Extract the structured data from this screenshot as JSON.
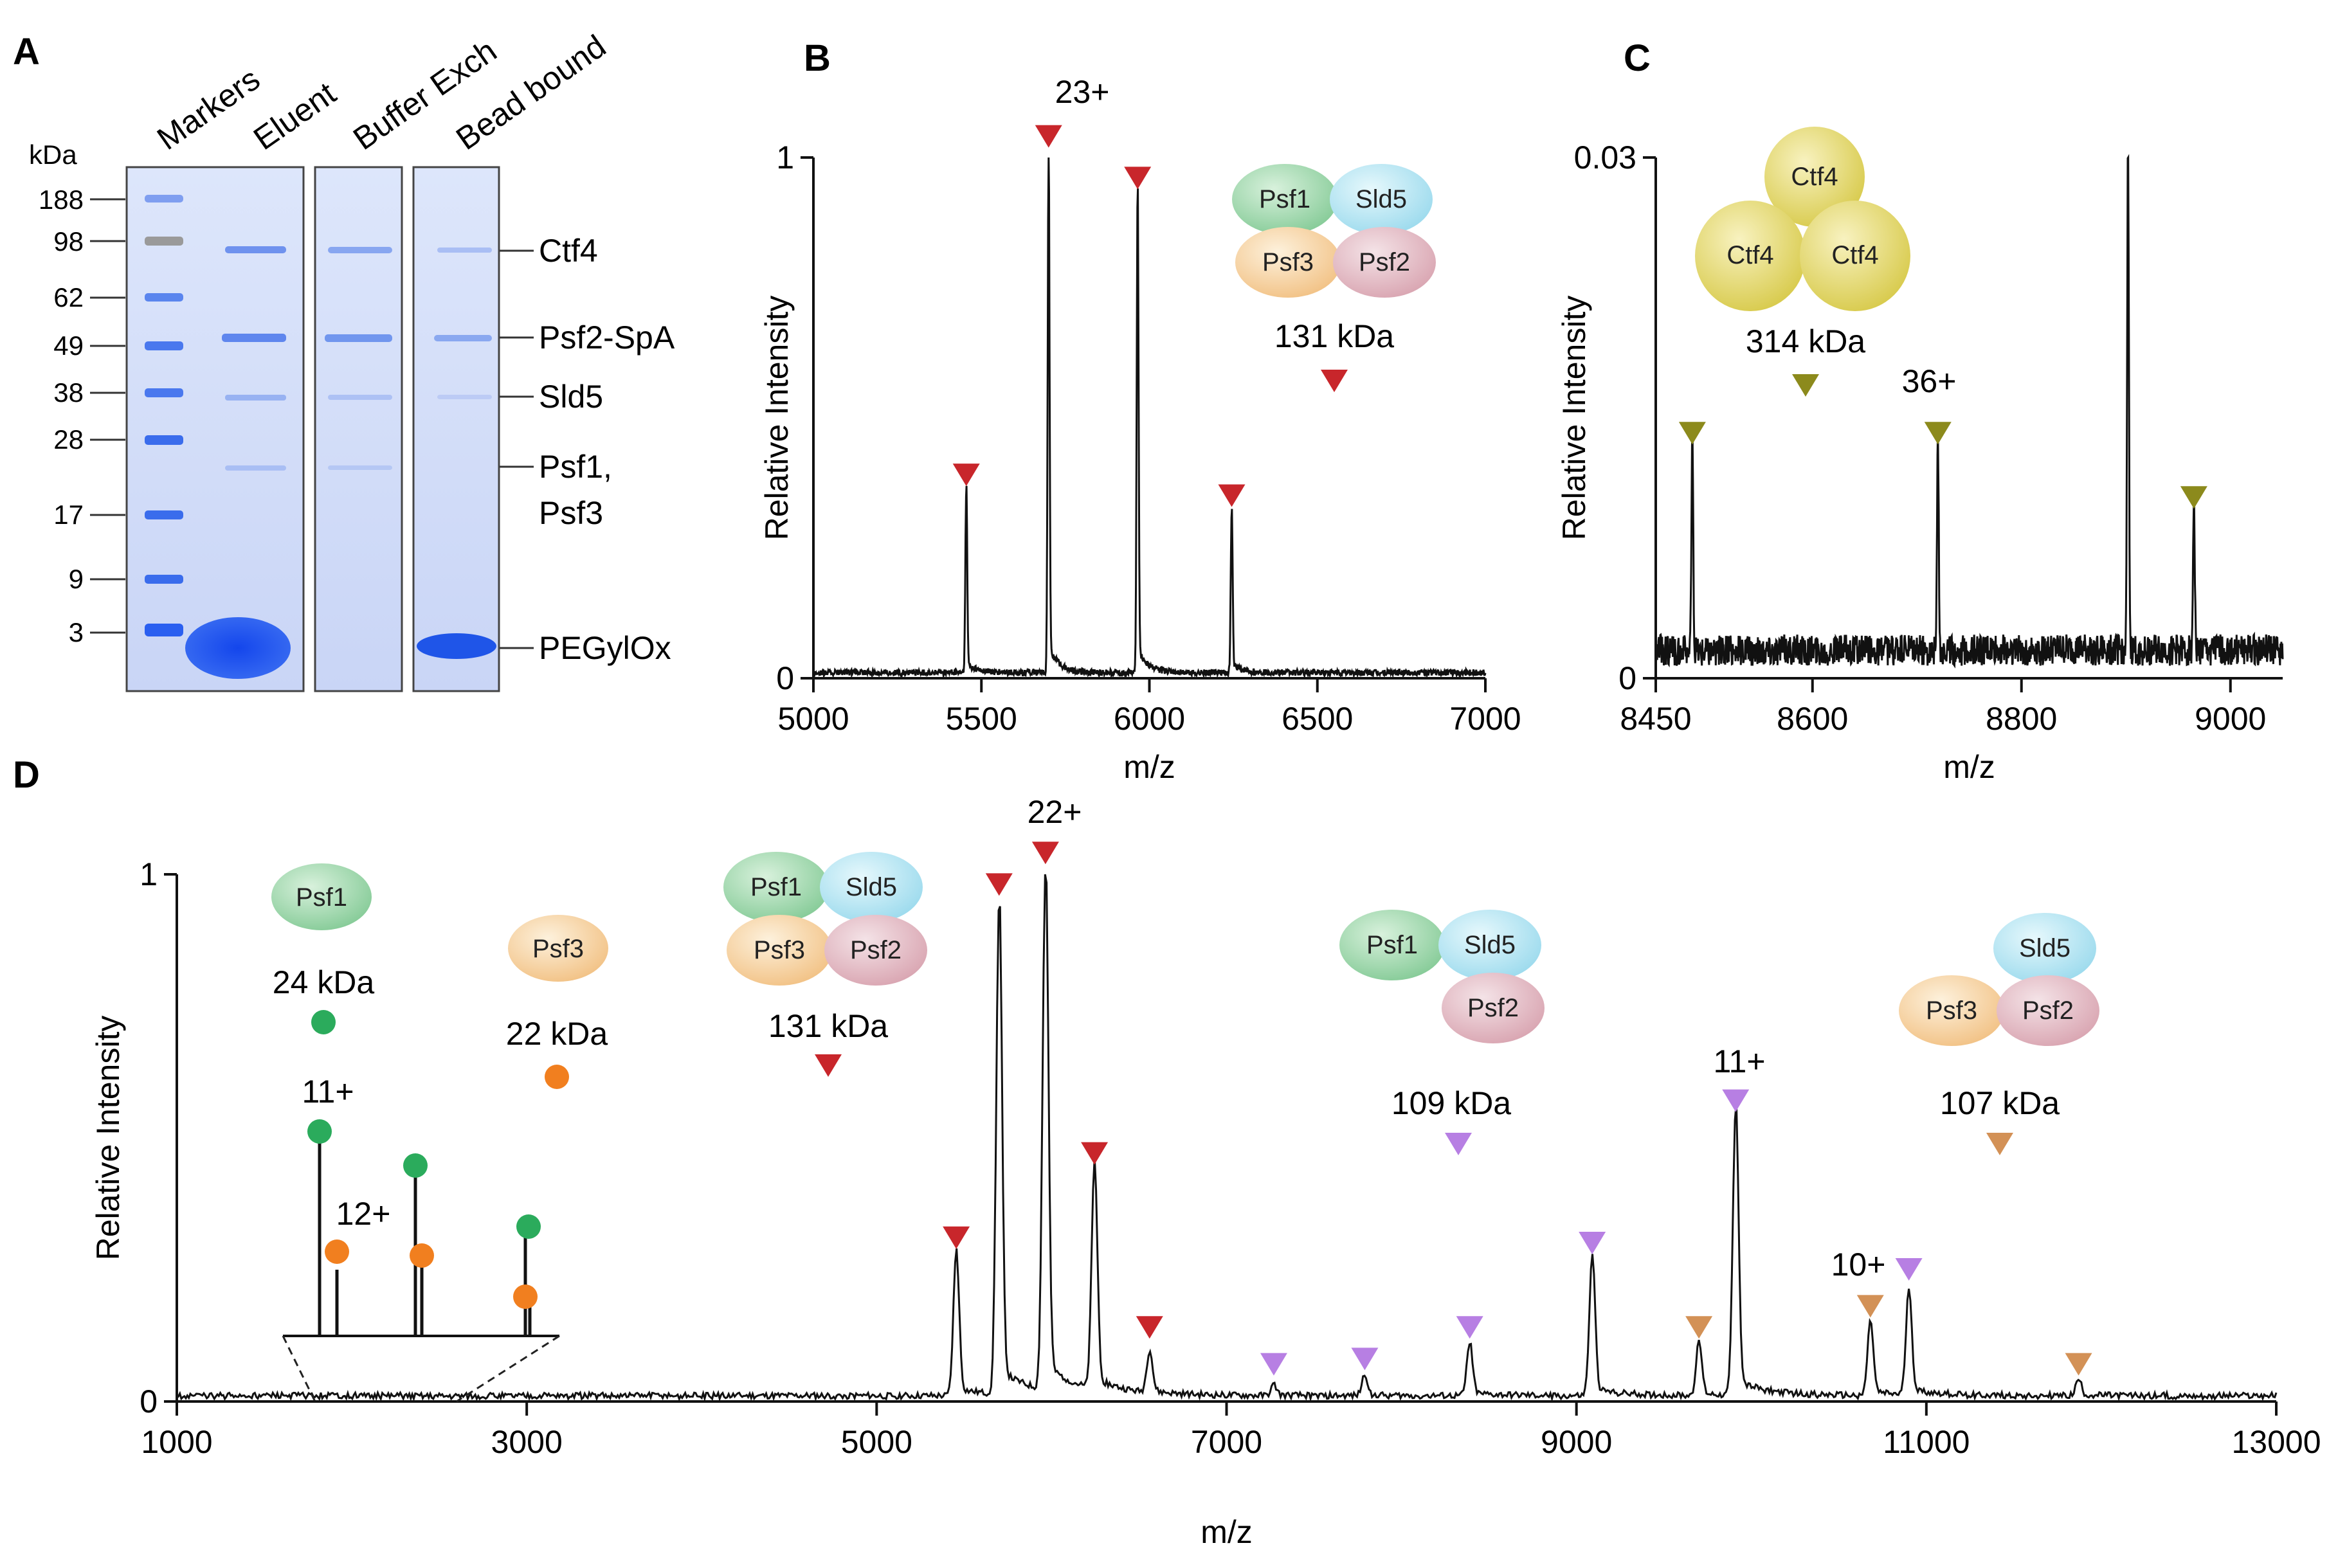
{
  "panels": {
    "A": {
      "letter": "A",
      "kda_label": "kDa",
      "lane_labels": [
        "Markers",
        "Eluent",
        "Buffer Exch",
        "Bead bound"
      ],
      "marker_values": [
        "188",
        "98",
        "62",
        "49",
        "38",
        "28",
        "17",
        "9",
        "3"
      ],
      "band_labels": [
        "Ctf4",
        "Psf2-SpA",
        "Sld5",
        "Psf1,",
        "Psf3",
        "PEGylOx"
      ]
    },
    "B": {
      "letter": "B",
      "complex_subunits": [
        "Psf1",
        "Sld5",
        "Psf3",
        "Psf2"
      ],
      "mass_label": "131 kDa",
      "charge_label": "23+"
    },
    "C": {
      "letter": "C",
      "complex_subunits": [
        "Ctf4",
        "Ctf4",
        "Ctf4"
      ],
      "mass_label": "314 kDa",
      "charge_label": "36+"
    },
    "D": {
      "letter": "D",
      "psf1": {
        "name": "Psf1",
        "mass_label": "24 kDa"
      },
      "psf3": {
        "name": "Psf3",
        "mass_label": "22 kDa"
      },
      "tetramer": {
        "subunits": [
          "Psf1",
          "Sld5",
          "Psf3",
          "Psf2"
        ],
        "mass_label": "131 kDa"
      },
      "trimer1": {
        "subunits": [
          "Psf1",
          "Sld5",
          "Psf2"
        ],
        "mass_label": "109 kDa"
      },
      "trimer2": {
        "subunits": [
          "Sld5",
          "Psf3",
          "Psf2"
        ],
        "mass_label": "107 kDa"
      },
      "charge_labels": {
        "tetramer": "22+",
        "psf1": "11+",
        "psf3": "12+",
        "trimer1": "11+",
        "trimer2": "10+"
      }
    }
  },
  "colors": {
    "red_marker": "#c8262b",
    "olive_marker": "#8c8a1c",
    "purple_marker": "#b77fe3",
    "orange_marker": "#d39156",
    "green_dot": "#2bab5c",
    "orange_dot": "#f17f1f",
    "gel_blue": "#1f55e8",
    "psf1_green": "#8ed1a0",
    "sld5_cyan": "#a5e1f0",
    "psf3_orange": "#f5c88a",
    "psf2_pink": "#dba8b4",
    "ctf4_yellow": "#e2d659"
  },
  "chart_data": [
    {
      "panel": "B",
      "type": "line",
      "xlabel": "m/z",
      "ylabel": "Relative  Intensity",
      "xlim": [
        5000,
        7000
      ],
      "ylim": [
        0,
        1
      ],
      "xticks": [
        5000,
        5500,
        6000,
        6500,
        7000
      ],
      "yticks": [
        0,
        1
      ],
      "peaks": [
        {
          "x": 5455,
          "y": 0.35
        },
        {
          "x": 5700,
          "y": 1.0
        },
        {
          "x": 5965,
          "y": 0.92
        },
        {
          "x": 6245,
          "y": 0.31
        }
      ],
      "markers": [
        {
          "x": 5455,
          "y": 0.39,
          "series": "131 kDa"
        },
        {
          "x": 5700,
          "y": 1.04,
          "series": "131 kDa"
        },
        {
          "x": 5965,
          "y": 0.96,
          "series": "131 kDa"
        },
        {
          "x": 6245,
          "y": 0.35,
          "series": "131 kDa"
        }
      ]
    },
    {
      "panel": "C",
      "type": "line",
      "xlabel": "m/z",
      "ylabel": "Relative  Intensity",
      "xlim": [
        8450,
        9050
      ],
      "ylim": [
        0,
        0.03
      ],
      "xticks": [
        8450,
        8600,
        8800,
        9000
      ],
      "yticks": [
        0,
        0.03
      ],
      "peaks": [
        {
          "x": 8485,
          "y": 0.0123
        },
        {
          "x": 8720,
          "y": 0.0125
        },
        {
          "x": 8902,
          "y": 0.0295
        },
        {
          "x": 8965,
          "y": 0.0088
        }
      ],
      "markers": [
        {
          "x": 8485,
          "y": 0.0141,
          "series": "314 kDa"
        },
        {
          "x": 8720,
          "y": 0.0141,
          "series": "314 kDa"
        },
        {
          "x": 8965,
          "y": 0.0104,
          "series": "314 kDa"
        }
      ]
    },
    {
      "panel": "D",
      "type": "line",
      "xlabel": "m/z",
      "ylabel": "Relative  Intensity",
      "xlim": [
        1000,
        13000
      ],
      "ylim": [
        0,
        1
      ],
      "xticks": [
        1000,
        3000,
        5000,
        7000,
        9000,
        11000,
        13000
      ],
      "yticks": [
        0,
        1
      ],
      "peaks": [
        {
          "x": 5455,
          "y": 0.27
        },
        {
          "x": 5700,
          "y": 0.93
        },
        {
          "x": 5965,
          "y": 0.99
        },
        {
          "x": 6245,
          "y": 0.42
        },
        {
          "x": 6560,
          "y": 0.08
        },
        {
          "x": 7270,
          "y": 0.02
        },
        {
          "x": 7790,
          "y": 0.04
        },
        {
          "x": 8390,
          "y": 0.1
        },
        {
          "x": 9090,
          "y": 0.26
        },
        {
          "x": 9700,
          "y": 0.1
        },
        {
          "x": 9910,
          "y": 0.54
        },
        {
          "x": 10680,
          "y": 0.14
        },
        {
          "x": 10900,
          "y": 0.2
        },
        {
          "x": 11870,
          "y": 0.03
        }
      ],
      "markers": [
        {
          "x": 5455,
          "y": 0.31,
          "series": "131 kDa"
        },
        {
          "x": 5700,
          "y": 0.98,
          "series": "131 kDa"
        },
        {
          "x": 5965,
          "y": 1.04,
          "series": "131 kDa"
        },
        {
          "x": 6245,
          "y": 0.47,
          "series": "131 kDa"
        },
        {
          "x": 6560,
          "y": 0.14,
          "series": "131 kDa"
        },
        {
          "x": 7270,
          "y": 0.07,
          "series": "109 kDa"
        },
        {
          "x": 7790,
          "y": 0.08,
          "series": "109 kDa"
        },
        {
          "x": 8390,
          "y": 0.14,
          "series": "109 kDa"
        },
        {
          "x": 9090,
          "y": 0.3,
          "series": "109 kDa"
        },
        {
          "x": 9910,
          "y": 0.57,
          "series": "109 kDa"
        },
        {
          "x": 10900,
          "y": 0.25,
          "series": "109 kDa"
        },
        {
          "x": 9700,
          "y": 0.14,
          "series": "107 kDa"
        },
        {
          "x": 10680,
          "y": 0.18,
          "series": "107 kDa"
        },
        {
          "x": 11870,
          "y": 0.07,
          "series": "107 kDa"
        }
      ]
    }
  ]
}
